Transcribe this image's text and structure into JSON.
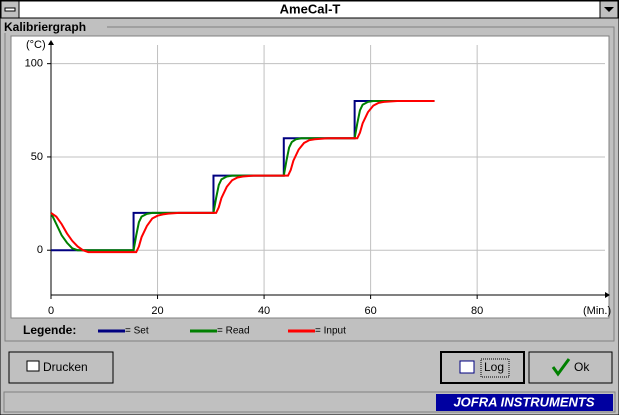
{
  "window": {
    "title": "AmeCal-T",
    "group_label": "Kalibriergraph"
  },
  "chart_data": {
    "type": "line",
    "y_label": "(°C)",
    "x_label": "(Min.)",
    "xlim": [
      0,
      104
    ],
    "ylim": [
      -24,
      110
    ],
    "xticks": [
      0,
      20,
      40,
      60,
      80
    ],
    "yticks": [
      0,
      50,
      100
    ],
    "grid": true,
    "legend_title": "Legende:",
    "series": [
      {
        "name": "= Set",
        "color": "#000080",
        "x": [
          0,
          15.5,
          15.5,
          30.5,
          30.5,
          43.7,
          43.7,
          57,
          57,
          72
        ],
        "values": [
          0,
          0,
          20,
          20,
          40,
          40,
          60,
          60,
          80,
          80
        ]
      },
      {
        "name": "= Read",
        "color": "#008000",
        "x": [
          0,
          1,
          2,
          3,
          4,
          5,
          8,
          15.5,
          16,
          16.5,
          17,
          18,
          19,
          30.5,
          31,
          31.5,
          32,
          33,
          34,
          43.7,
          44.2,
          44.7,
          45.2,
          46,
          47,
          57,
          57.5,
          58,
          58.5,
          59.5,
          60.5,
          72
        ],
        "values": [
          20,
          14,
          8,
          4,
          1,
          0,
          0,
          0,
          8,
          15,
          18,
          19.5,
          20,
          20,
          28,
          35,
          38,
          39.5,
          40,
          40,
          48,
          55,
          58,
          59.5,
          60,
          60,
          68,
          75,
          78,
          79.5,
          80,
          80
        ]
      },
      {
        "name": "= Input",
        "color": "#ff0000",
        "x": [
          0,
          1,
          2,
          3,
          4,
          5,
          6,
          7,
          8,
          16,
          16.5,
          17,
          18,
          19,
          20,
          21,
          22,
          24,
          31,
          31.5,
          32,
          33,
          34,
          35,
          36,
          38,
          44.5,
          45,
          45.5,
          46.5,
          47.5,
          48.5,
          49.5,
          52,
          57.5,
          58,
          58.5,
          59.5,
          60.5,
          61.5,
          62.5,
          65,
          72
        ],
        "values": [
          20,
          18,
          14,
          9,
          5,
          2,
          0,
          -1,
          -1,
          -1,
          2,
          7,
          13,
          17,
          18.5,
          19.2,
          19.6,
          20,
          20,
          23,
          28,
          34,
          37.5,
          39,
          39.5,
          40,
          40,
          43,
          48,
          54,
          57.5,
          59,
          59.5,
          60,
          60,
          63,
          68,
          74,
          77.5,
          79,
          79.5,
          80,
          80
        ]
      }
    ]
  },
  "buttons": {
    "print": "Drucken",
    "log": "Log",
    "ok": "Ok"
  },
  "footer": {
    "brand": "JOFRA INSTRUMENTS"
  }
}
